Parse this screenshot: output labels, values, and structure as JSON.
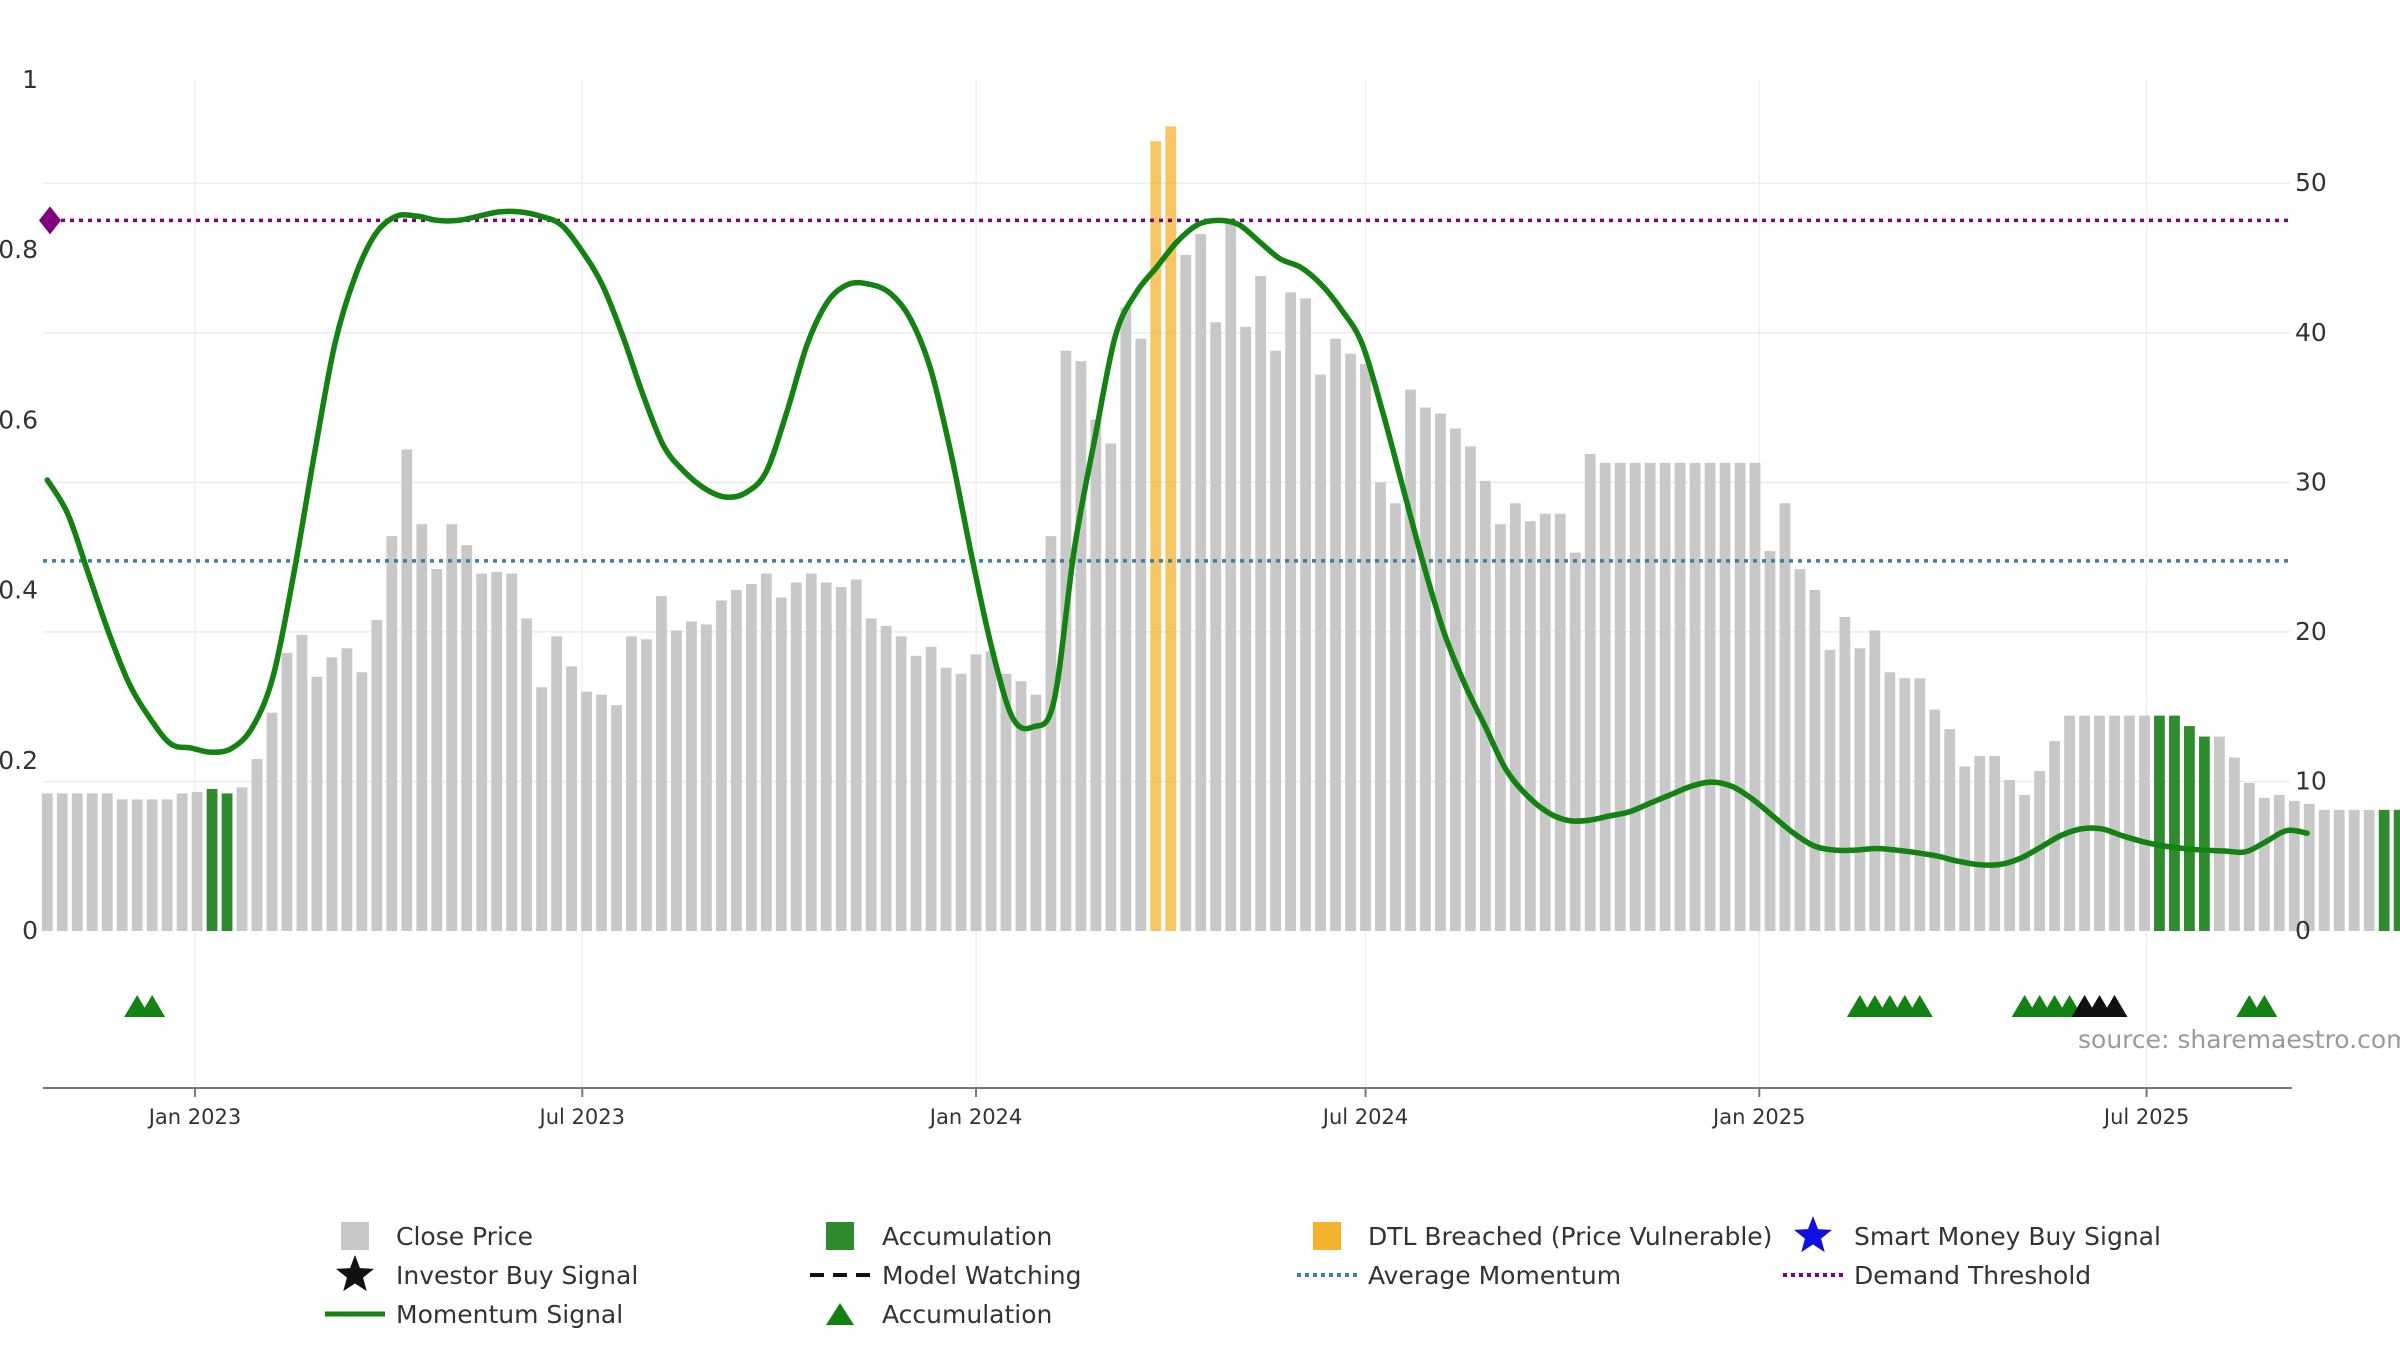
{
  "chart_data": {
    "type": "bar",
    "source_text": "source: sharemaestro.com",
    "colors": {
      "close_price": "#c8c8c8",
      "accumulation": "#2e8b2e",
      "dtl": "#f5b22e",
      "momentum": "#138213",
      "avg_momentum": "#3a7fa0",
      "demand_threshold": "#800080",
      "marker_accum": "#138213",
      "marker_investor": "#111111"
    },
    "axes": {
      "left": {
        "ticks": [
          "0",
          "0.2",
          "0.4",
          "0.6",
          "0.8",
          "1"
        ],
        "values": [
          0,
          0.2,
          0.4,
          0.6,
          0.8,
          1
        ],
        "range": [
          0,
          1
        ]
      },
      "right": {
        "ticks": [
          "0",
          "10",
          "20",
          "30",
          "40",
          "50"
        ],
        "values": [
          0,
          10,
          20,
          30,
          40,
          50
        ],
        "range": [
          0,
          56.9
        ]
      },
      "x": {
        "range": [
          "2022-10-22",
          "2025-09-06"
        ],
        "ticks": [
          {
            "label": "Jan 2023",
            "date": "2023-01-01"
          },
          {
            "label": "Jul 2023",
            "date": "2023-07-01"
          },
          {
            "label": "Jan 2024",
            "date": "2024-01-01"
          },
          {
            "label": "Jul 2024",
            "date": "2024-07-01"
          },
          {
            "label": "Jan 2025",
            "date": "2025-01-01"
          },
          {
            "label": "Jul 2025",
            "date": "2025-07-01"
          }
        ]
      }
    },
    "series": {
      "start_date": "2022-10-24",
      "interval_days": 7,
      "close_price": [
        9.2,
        9.2,
        9.2,
        9.2,
        9.2,
        8.8,
        8.8,
        8.8,
        8.8,
        9.2,
        9.3,
        9.5,
        9.2,
        9.6,
        11.5,
        14.6,
        18.6,
        19.8,
        17.0,
        18.3,
        18.9,
        17.3,
        20.8,
        26.4,
        32.2,
        27.2,
        24.2,
        27.2,
        25.8,
        23.9,
        24.0,
        23.9,
        20.9,
        16.3,
        19.7,
        17.7,
        16.0,
        15.8,
        15.1,
        19.7,
        19.5,
        22.4,
        20.1,
        20.7,
        20.5,
        22.1,
        22.8,
        23.2,
        23.9,
        22.3,
        23.3,
        23.9,
        23.3,
        23.0,
        23.5,
        20.9,
        20.4,
        19.7,
        18.4,
        19.0,
        17.6,
        17.2,
        18.5,
        18.7,
        17.2,
        16.7,
        15.8,
        26.4,
        38.8,
        38.1,
        34.2,
        32.6,
        41.7,
        39.6,
        52.8,
        53.8,
        45.2,
        46.6,
        40.7,
        47.4,
        40.4,
        43.8,
        38.8,
        42.7,
        42.3,
        37.2,
        39.6,
        38.6,
        37.9,
        30.0,
        28.6,
        36.2,
        35.0,
        34.6,
        33.6,
        32.4,
        30.1,
        27.2,
        28.6,
        27.4,
        27.9,
        27.9,
        25.3,
        31.9,
        31.3,
        31.3,
        31.3,
        31.3,
        31.3,
        31.3,
        31.3,
        31.3,
        31.3,
        31.3,
        31.3,
        25.4,
        28.6,
        24.2,
        22.8,
        18.8,
        21.0,
        18.9,
        20.1,
        17.3,
        16.9,
        16.9,
        14.8,
        13.5,
        11.0,
        11.7,
        11.7,
        10.1,
        9.1,
        10.7,
        12.7,
        14.4,
        14.4,
        14.4,
        14.4,
        14.4,
        14.4,
        14.4,
        14.4,
        13.7,
        13.0,
        13.0,
        11.6,
        9.9,
        8.9,
        9.1,
        8.7,
        8.5,
        8.1,
        8.1,
        8.1,
        8.1,
        8.1,
        8.1,
        8.1,
        8.1
      ],
      "bar_category": "gggggggggggaagggggggggggggggggggggggggggggggggggggggggggggggggggggggggggggddgggggggggggggggggggggggggggggggggggggggggggggggggggggggggggggggggaaaagggggggggggaaaaaaagggggggggggggaag",
      "momentum": [
        0.53,
        0.49,
        0.42,
        0.35,
        0.29,
        0.25,
        0.22,
        0.215,
        0.21,
        0.215,
        0.24,
        0.3,
        0.42,
        0.56,
        0.69,
        0.77,
        0.82,
        0.84,
        0.84,
        0.835,
        0.835,
        0.84,
        0.845,
        0.845,
        0.84,
        0.83,
        0.8,
        0.76,
        0.7,
        0.63,
        0.57,
        0.54,
        0.52,
        0.51,
        0.515,
        0.54,
        0.61,
        0.69,
        0.74,
        0.76,
        0.76,
        0.75,
        0.72,
        0.66,
        0.56,
        0.44,
        0.33,
        0.25,
        0.24,
        0.27,
        0.45,
        0.58,
        0.7,
        0.75,
        0.78,
        0.81,
        0.83,
        0.835,
        0.83,
        0.81,
        0.79,
        0.78,
        0.76,
        0.73,
        0.69,
        0.61,
        0.52,
        0.43,
        0.35,
        0.29,
        0.24,
        0.19,
        0.16,
        0.14,
        0.13,
        0.13,
        0.135,
        0.14,
        0.15,
        0.16,
        0.17,
        0.175,
        0.17,
        0.155,
        0.135,
        0.115,
        0.1,
        0.095,
        0.095,
        0.097,
        0.095,
        0.092,
        0.088,
        0.082,
        0.078,
        0.078,
        0.085,
        0.098,
        0.112,
        0.12,
        0.12,
        0.112,
        0.105,
        0.1,
        0.097,
        0.095,
        0.094,
        0.093,
        0.105,
        0.118,
        0.115
      ],
      "momentum_start_date": "2022-10-24",
      "momentum_interval_days": 9.6,
      "average_momentum": 0.435,
      "demand_threshold": 0.835
    },
    "signals": {
      "accumulation": [
        "2022-12-05",
        "2022-12-12",
        "2025-02-17",
        "2025-02-24",
        "2025-03-03",
        "2025-03-10",
        "2025-03-17",
        "2025-05-05",
        "2025-05-12",
        "2025-05-19",
        "2025-05-26",
        "2025-08-18",
        "2025-08-25"
      ],
      "investor_buy": [
        "2025-06-02",
        "2025-06-09",
        "2025-06-16"
      ]
    },
    "legend": [
      {
        "label": "Close Price",
        "symbol": "square-grey"
      },
      {
        "label": "Accumulation",
        "symbol": "square-green"
      },
      {
        "label": "DTL Breached (Price Vulnerable)",
        "symbol": "square-orange"
      },
      {
        "label": "Smart Money Buy Signal",
        "symbol": "star-blue"
      },
      {
        "label": "Investor Buy Signal",
        "symbol": "star-black"
      },
      {
        "label": "Model Watching",
        "symbol": "dash-black"
      },
      {
        "label": "Average Momentum",
        "symbol": "dotted-blue"
      },
      {
        "label": "Demand Threshold",
        "symbol": "dotted-purple"
      },
      {
        "label": "Momentum Signal",
        "symbol": "line-green"
      },
      {
        "label": "Accumulation",
        "symbol": "triangle-green"
      }
    ]
  }
}
